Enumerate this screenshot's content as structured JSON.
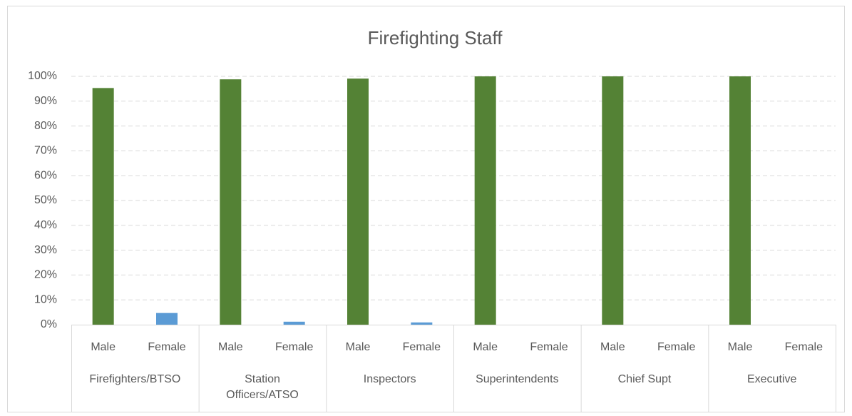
{
  "chart_data": {
    "type": "bar",
    "title": "Firefighting Staff",
    "groups": [
      "Firefighters/BTSO",
      "Station Officers/ATSO",
      "Inspectors",
      "Superintendents",
      "Chief Supt",
      "Executive"
    ],
    "categories": [
      "Male",
      "Female",
      "Male",
      "Female",
      "Male",
      "Female",
      "Male",
      "Female",
      "Male",
      "Female",
      "Male",
      "Female"
    ],
    "values": [
      95.3,
      4.7,
      98.8,
      1.2,
      99.1,
      0.9,
      100,
      0,
      100,
      0,
      100,
      0
    ],
    "colors": [
      "#548235",
      "#5b9bd5"
    ],
    "ylim": [
      0,
      100
    ],
    "yticks": [
      {
        "value": 0,
        "label": "0%"
      },
      {
        "value": 10,
        "label": "10%"
      },
      {
        "value": 20,
        "label": "20%"
      },
      {
        "value": 30,
        "label": "30%"
      },
      {
        "value": 40,
        "label": "40%"
      },
      {
        "value": 50,
        "label": "50%"
      },
      {
        "value": 60,
        "label": "60%"
      },
      {
        "value": 70,
        "label": "70%"
      },
      {
        "value": 80,
        "label": "80%"
      },
      {
        "value": 90,
        "label": "90%"
      },
      {
        "value": 100,
        "label": "100%"
      }
    ],
    "grid": true
  }
}
